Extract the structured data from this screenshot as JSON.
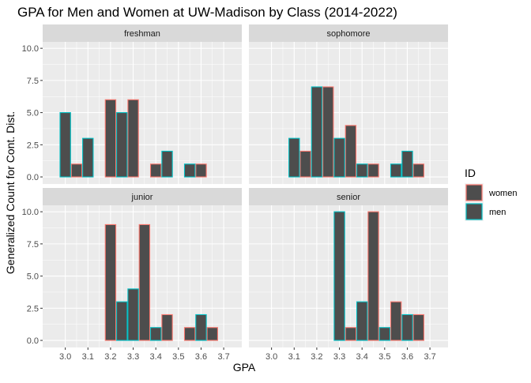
{
  "chart_data": {
    "type": "bar",
    "title": "GPA for Men and Women at UW-Madison by Class (2014-2022)",
    "xlabel": "GPA",
    "ylabel": "Generalized Count for Cont. Dist.",
    "x": [
      2.95,
      3.0,
      3.05,
      3.1,
      3.15,
      3.2,
      3.25,
      3.3,
      3.35,
      3.4,
      3.45,
      3.5,
      3.55,
      3.6,
      3.65,
      3.7
    ],
    "x_ticks": [
      "3.0",
      "3.1",
      "3.2",
      "3.3",
      "3.4",
      "3.5",
      "3.6",
      "3.7"
    ],
    "x_tick_values": [
      3.0,
      3.1,
      3.2,
      3.3,
      3.4,
      3.5,
      3.6,
      3.7
    ],
    "xlim": [
      2.9,
      3.78
    ],
    "bar_width": 0.05,
    "ylim": [
      -0.55,
      10.5
    ],
    "y_ticks": [
      "0.0",
      "2.5",
      "5.0",
      "7.5",
      "10.0"
    ],
    "y_tick_values": [
      0,
      2.5,
      5,
      7.5,
      10
    ],
    "grid": true,
    "legend": {
      "title": "ID",
      "placement": "right",
      "entries": [
        {
          "label": "women",
          "outline": "#F8766D"
        },
        {
          "label": "men",
          "outline": "#00BFC4"
        }
      ]
    },
    "bar_fill": "#4d4d4d",
    "panel_bg": "#ebebeb",
    "strip_bg": "#d9d9d9",
    "panels": [
      {
        "name": "freshman",
        "series": [
          {
            "name": "women",
            "values": [
              0,
              0,
              1,
              0,
              0,
              6,
              0,
              6,
              0,
              1,
              0,
              0,
              0,
              1,
              0,
              0
            ]
          },
          {
            "name": "men",
            "values": [
              0,
              5,
              0,
              3,
              0,
              0,
              5,
              0,
              0,
              0,
              2,
              0,
              1,
              0,
              0,
              0
            ]
          }
        ]
      },
      {
        "name": "sophomore",
        "series": [
          {
            "name": "women",
            "values": [
              0,
              0,
              0,
              0,
              2,
              0,
              7,
              0,
              4,
              0,
              1,
              0,
              0,
              0,
              1,
              0
            ]
          },
          {
            "name": "men",
            "values": [
              0,
              0,
              0,
              3,
              0,
              7,
              0,
              3,
              0,
              1,
              0,
              0,
              1,
              2,
              0,
              0
            ]
          }
        ]
      },
      {
        "name": "junior",
        "series": [
          {
            "name": "women",
            "values": [
              0,
              0,
              0,
              0,
              0,
              9,
              0,
              0,
              9,
              0,
              2,
              0,
              1,
              0,
              1,
              0
            ]
          },
          {
            "name": "men",
            "values": [
              0,
              0,
              0,
              0,
              0,
              0,
              3,
              4,
              0,
              1,
              0,
              0,
              0,
              2,
              0,
              0
            ]
          }
        ]
      },
      {
        "name": "senior",
        "series": [
          {
            "name": "women",
            "values": [
              0,
              0,
              0,
              0,
              0,
              0,
              0,
              0,
              1,
              0,
              10,
              0,
              3,
              0,
              2,
              0
            ]
          },
          {
            "name": "men",
            "values": [
              0,
              0,
              0,
              0,
              0,
              0,
              0,
              10,
              0,
              3,
              0,
              1,
              0,
              2,
              0,
              0
            ]
          }
        ]
      }
    ]
  }
}
